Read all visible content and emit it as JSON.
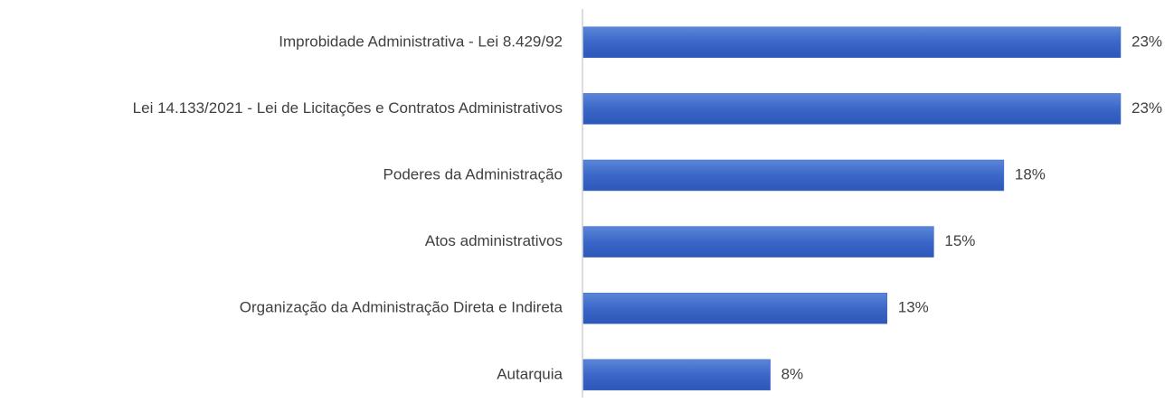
{
  "chart_data": {
    "type": "bar",
    "orientation": "horizontal",
    "categories": [
      "Improbidade Administrativa - Lei 8.429/92",
      "Lei 14.133/2021 - Lei de Licitações e Contratos Administrativos",
      "Poderes da Administração",
      "Atos administrativos",
      "Organização da Administração Direta e Indireta",
      "Autarquia"
    ],
    "values": [
      23,
      23,
      18,
      15,
      13,
      8
    ],
    "value_labels": [
      "23%",
      "23%",
      "18%",
      "15%",
      "13%",
      "8%"
    ],
    "color": "#3b67c9"
  }
}
